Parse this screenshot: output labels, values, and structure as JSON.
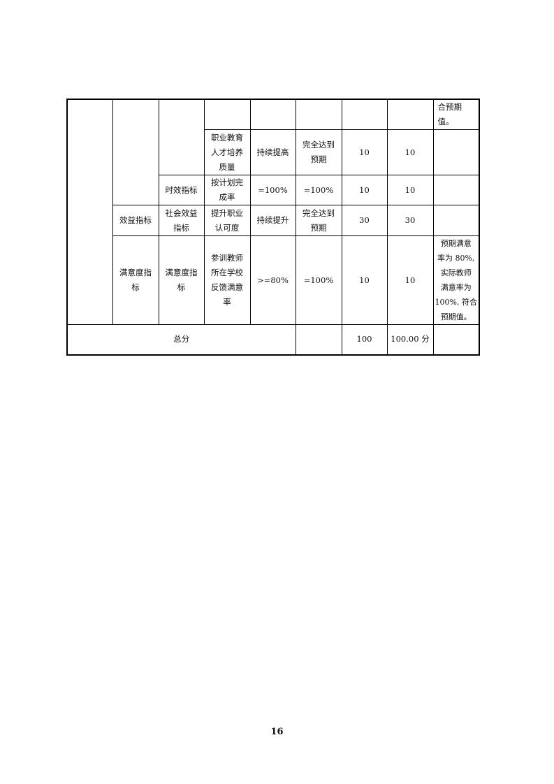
{
  "table": {
    "r1": {
      "c4": "",
      "c5": "",
      "c6": "",
      "c7": "",
      "c8": "",
      "c9": "合预期值。"
    },
    "r2": {
      "indicator": "职业教育\n人才培养\n质量",
      "target": "持续提高",
      "actual": "完全达到\n预期",
      "weight": "10",
      "score": "10",
      "remark": ""
    },
    "r3": {
      "sub": "时效指标",
      "indicator": "按计划完\n成率",
      "target": "=100%",
      "actual": "=100%",
      "weight": "10",
      "score": "10",
      "remark": ""
    },
    "r4": {
      "cat": "效益指标",
      "sub": "社会效益\n指标",
      "indicator": "提升职业\n认可度",
      "target": "持续提升",
      "actual": "完全达到\n预期",
      "weight": "30",
      "score": "30",
      "remark": ""
    },
    "r5": {
      "cat": "满意度指\n标",
      "sub": "满意度指\n标",
      "indicator": "参训教师\n所在学校\n反馈满意\n率",
      "target": ">=80%",
      "actual": "=100%",
      "weight": "10",
      "score": "10",
      "remark": "预期满意\n率为 80%,\n实际教师\n满意率为\n100%, 符合\n预期值。"
    },
    "total": {
      "label": "总分",
      "blank": "",
      "weight": "100",
      "score": "100.00 分",
      "remark": ""
    }
  },
  "page_number": "16"
}
